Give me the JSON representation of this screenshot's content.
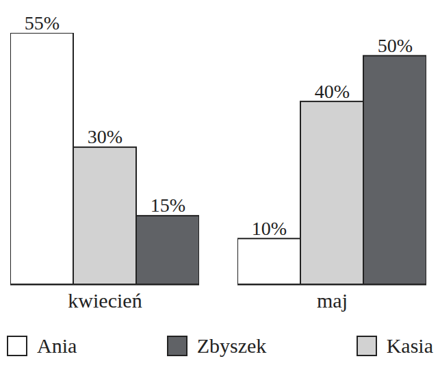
{
  "chart_data": {
    "type": "bar",
    "categories": [
      "kwiecień",
      "maj"
    ],
    "series": [
      {
        "name": "Ania",
        "color": "#ffffff",
        "values": [
          55,
          10
        ],
        "value_labels": [
          "55%",
          "10%"
        ]
      },
      {
        "name": "Zbyszek",
        "color": "#606266",
        "values": [
          15,
          50
        ],
        "value_labels": [
          "15%",
          "50%"
        ]
      },
      {
        "name": "Kasia",
        "color": "#d2d2d2",
        "values": [
          30,
          40
        ],
        "value_labels": [
          "30%",
          "40%"
        ]
      }
    ],
    "ylim": [
      0,
      55
    ],
    "data_labels": true,
    "tick_labels": "x",
    "legend": "bottom"
  }
}
